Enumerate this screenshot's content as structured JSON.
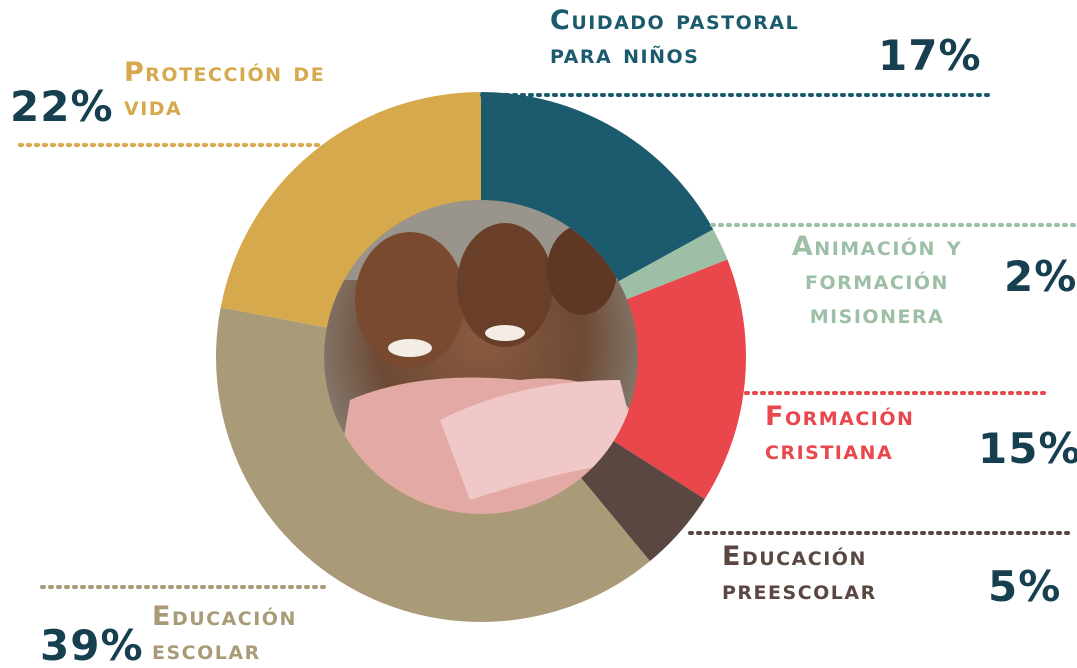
{
  "chart_data": {
    "type": "donut",
    "categories": [
      "Cuidado pastoral para niños",
      "Animación y formación misionera",
      "Formación cristiana",
      "Educación preescolar",
      "Educación escolar",
      "Protección de vida"
    ],
    "values": [
      17,
      2,
      15,
      5,
      39,
      22
    ],
    "value_labels": [
      "17%",
      "2%",
      "15%",
      "5%",
      "39%",
      "22%"
    ],
    "colors": [
      "#1b5b6d",
      "#9dbfa6",
      "#e9474b",
      "#5a4741",
      "#a99b78",
      "#d6a94c"
    ]
  }
}
